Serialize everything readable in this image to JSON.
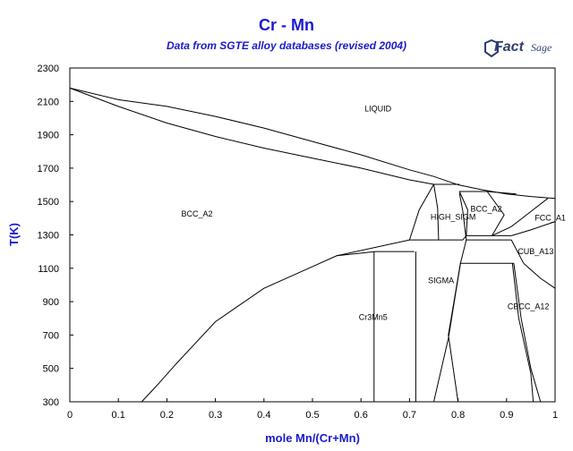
{
  "header": {
    "title": "Cr - Mn",
    "subtitle": "Data from SGTE alloy databases (revised 2004)",
    "logo_text_1": "Fact",
    "logo_text_2": "Sage"
  },
  "colors": {
    "title": "#1a1acc",
    "lines": "#000000",
    "logo": "#2d3f6e"
  },
  "chart_data": {
    "type": "phase-diagram",
    "title": "Cr - Mn",
    "subtitle": "Data from SGTE alloy databases (revised 2004)",
    "xlabel": "mole Mn/(Cr+Mn)",
    "ylabel": "T(K)",
    "xlim": [
      0,
      1
    ],
    "ylim": [
      300,
      2300
    ],
    "grid": false,
    "x_ticks": [
      0,
      0.1,
      0.2,
      0.3,
      0.4,
      0.5,
      0.6,
      0.7,
      0.8,
      0.9,
      1
    ],
    "x_tick_labels": [
      "0",
      "0.1",
      "0.2",
      "0.3",
      "0.4",
      "0.5",
      "0.6",
      "0.7",
      "0.8",
      "0.9",
      "1"
    ],
    "y_ticks": [
      300,
      500,
      700,
      900,
      1100,
      1300,
      1500,
      1700,
      1900,
      2100,
      2300
    ],
    "phase_labels": [
      {
        "text": "LIQUID",
        "x": 0.635,
        "y": 2040
      },
      {
        "text": "BCC_A2",
        "x": 0.262,
        "y": 1410
      },
      {
        "text": "BCC_A2",
        "x": 0.858,
        "y": 1440
      },
      {
        "text": "HIGH_SIGM",
        "x": 0.79,
        "y": 1390
      },
      {
        "text": "FCC_A1",
        "x": 0.99,
        "y": 1385
      },
      {
        "text": "CUB_A13",
        "x": 0.96,
        "y": 1185
      },
      {
        "text": "SIGMA",
        "x": 0.765,
        "y": 1010
      },
      {
        "text": "Cr3Mn5",
        "x": 0.625,
        "y": 790
      },
      {
        "text": "CBCC_A12",
        "x": 0.945,
        "y": 855
      }
    ],
    "boundaries": [
      {
        "name": "liquidus",
        "points": [
          [
            0,
            2180
          ],
          [
            0.1,
            2110
          ],
          [
            0.2,
            2070
          ],
          [
            0.3,
            2010
          ],
          [
            0.4,
            1940
          ],
          [
            0.5,
            1860
          ],
          [
            0.6,
            1780
          ],
          [
            0.7,
            1690
          ],
          [
            0.75,
            1650
          ],
          [
            0.8,
            1600
          ],
          [
            0.85,
            1570
          ],
          [
            0.9,
            1545
          ],
          [
            0.95,
            1530
          ],
          [
            1,
            1519
          ]
        ]
      },
      {
        "name": "solidus",
        "points": [
          [
            0,
            2180
          ],
          [
            0.1,
            2070
          ],
          [
            0.2,
            1970
          ],
          [
            0.3,
            1890
          ],
          [
            0.4,
            1820
          ],
          [
            0.5,
            1760
          ],
          [
            0.6,
            1700
          ],
          [
            0.7,
            1630
          ],
          [
            0.75,
            1603
          ]
        ]
      },
      {
        "name": "bcc-solvus-low-cr",
        "points": [
          [
            0.148,
            300
          ],
          [
            0.18,
            400
          ],
          [
            0.22,
            530
          ],
          [
            0.3,
            780
          ],
          [
            0.4,
            980
          ],
          [
            0.5,
            1110
          ],
          [
            0.55,
            1175
          ],
          [
            0.63,
            1200
          ],
          [
            0.71,
            1200
          ]
        ]
      },
      {
        "name": "bcc-highsigma-boundary",
        "points": [
          [
            0.55,
            1175
          ],
          [
            0.7,
            1270
          ],
          [
            0.76,
            1270
          ],
          [
            0.81,
            1270
          ]
        ]
      },
      {
        "name": "highsigma-left",
        "points": [
          [
            0.7,
            1270
          ],
          [
            0.72,
            1450
          ],
          [
            0.75,
            1603
          ]
        ]
      },
      {
        "name": "highsigma-right",
        "points": [
          [
            0.75,
            1603
          ],
          [
            0.758,
            1460
          ],
          [
            0.76,
            1270
          ]
        ]
      },
      {
        "name": "highsigma-2-left",
        "points": [
          [
            0.803,
            1550
          ],
          [
            0.81,
            1440
          ],
          [
            0.817,
            1270
          ]
        ]
      },
      {
        "name": "eutectic-high",
        "points": [
          [
            0.75,
            1603
          ],
          [
            0.803,
            1603
          ]
        ]
      },
      {
        "name": "bcc2-top",
        "points": [
          [
            0.803,
            1560
          ],
          [
            0.86,
            1560
          ],
          [
            0.92,
            1545
          ]
        ]
      },
      {
        "name": "bcc2-left",
        "points": [
          [
            0.803,
            1560
          ],
          [
            0.82,
            1450
          ],
          [
            0.817,
            1295
          ]
        ]
      },
      {
        "name": "bcc2-right",
        "points": [
          [
            0.86,
            1560
          ],
          [
            0.895,
            1420
          ],
          [
            0.87,
            1295
          ]
        ]
      },
      {
        "name": "fcc-left",
        "points": [
          [
            0.87,
            1295
          ],
          [
            0.91,
            1350
          ],
          [
            0.95,
            1440
          ],
          [
            0.985,
            1519
          ]
        ]
      },
      {
        "name": "high-sigma-bottom",
        "points": [
          [
            0.81,
            1270
          ],
          [
            0.817,
            1295
          ],
          [
            0.87,
            1295
          ],
          [
            0.91,
            1295
          ]
        ]
      },
      {
        "name": "cub-top",
        "points": [
          [
            0.817,
            1270
          ],
          [
            0.91,
            1270
          ]
        ]
      },
      {
        "name": "cub-box-left",
        "points": [
          [
            0.817,
            1270
          ],
          [
            0.805,
            1130
          ],
          [
            0.817,
            1130
          ]
        ]
      },
      {
        "name": "cub-box-bottom",
        "points": [
          [
            0.817,
            1130
          ],
          [
            0.915,
            1130
          ]
        ]
      },
      {
        "name": "cub-box-right",
        "points": [
          [
            0.91,
            1270
          ],
          [
            0.935,
            1130
          ]
        ]
      },
      {
        "name": "fcc-lower",
        "points": [
          [
            0.91,
            1295
          ],
          [
            0.95,
            1330
          ],
          [
            1,
            1380
          ]
        ]
      },
      {
        "name": "cub-right",
        "points": [
          [
            0.935,
            1130
          ],
          [
            0.97,
            1040
          ],
          [
            1,
            980
          ]
        ]
      },
      {
        "name": "cr3mn5-left",
        "points": [
          [
            0.627,
            300
          ],
          [
            0.627,
            1200
          ]
        ]
      },
      {
        "name": "cr3mn5-right",
        "points": [
          [
            0.713,
            300
          ],
          [
            0.713,
            1200
          ]
        ]
      },
      {
        "name": "sigma-left",
        "points": [
          [
            0.75,
            300
          ],
          [
            0.78,
            680
          ],
          [
            0.805,
            1130
          ]
        ]
      },
      {
        "name": "sigma-right",
        "points": [
          [
            0.805,
            1130
          ],
          [
            0.78,
            700
          ],
          [
            0.8,
            300
          ]
        ]
      },
      {
        "name": "cbcc-left",
        "points": [
          [
            0.912,
            1130
          ],
          [
            0.925,
            800
          ],
          [
            0.95,
            470
          ],
          [
            0.955,
            300
          ]
        ]
      },
      {
        "name": "cbcc-right",
        "points": [
          [
            0.915,
            1130
          ],
          [
            0.93,
            800
          ],
          [
            0.95,
            500
          ],
          [
            0.97,
            300
          ]
        ]
      }
    ]
  }
}
